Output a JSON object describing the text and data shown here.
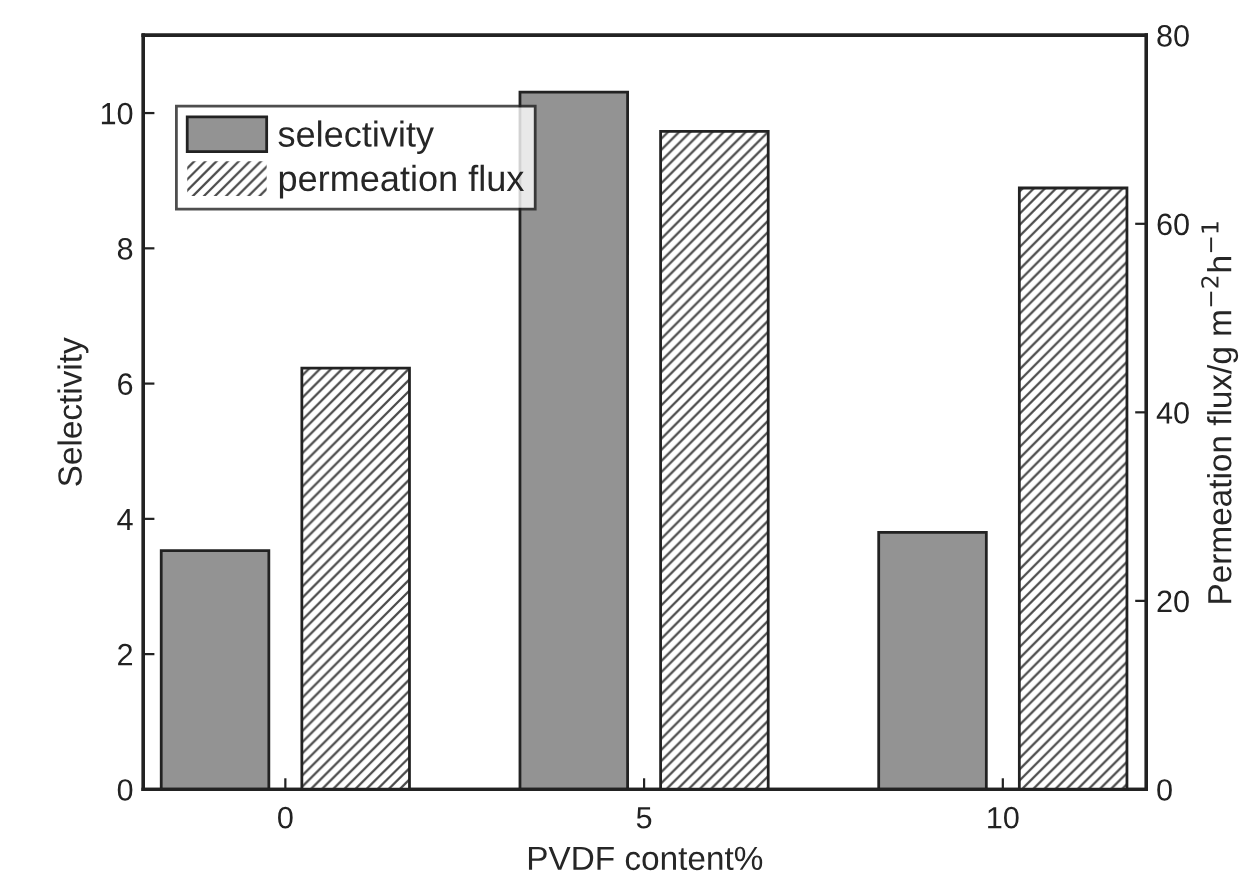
{
  "chart_data": {
    "type": "bar",
    "xlabel": "PVDF content%",
    "ylabel": "Selectivity",
    "y2label": "Permeation flux/g m$^{−2}$h$^{−1}$",
    "categories": [
      "0",
      "5",
      "10"
    ],
    "series": [
      {
        "name": "selectivity",
        "color": "#939393",
        "values": [
          3.53,
          10.31,
          3.8
        ]
      },
      {
        "name": "permeation flux",
        "color": "#4a4a4a",
        "values": [
          44.7,
          69.8,
          63.8
        ],
        "axis": "y2"
      }
    ],
    "ylim": [
      0,
      11.15
    ],
    "yticks": [
      0,
      2,
      4,
      6,
      8,
      10
    ],
    "y2lim": [
      0,
      80
    ],
    "y2ticks": [
      0,
      20,
      40,
      60,
      80
    ],
    "grid": false,
    "legend": "top left"
  }
}
